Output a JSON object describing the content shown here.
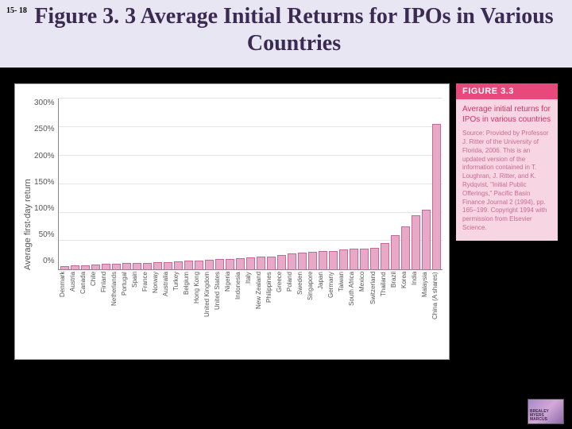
{
  "page_number": "15- 18",
  "title": "Figure 3. 3 Average Initial Returns for IPOs in Various Countries",
  "chart": {
    "type": "bar",
    "y_axis_label": "Average first-day return",
    "ylim": [
      0,
      300
    ],
    "ytick_step": 50,
    "y_ticks": [
      "300%",
      "250%",
      "200%",
      "150%",
      "100%",
      "50%",
      "0%"
    ],
    "bar_fill": "#e8a8c8",
    "bar_stroke": "#c46a9a",
    "grid_color": "#e5e5e5",
    "axis_color": "#888888",
    "background_color": "#ffffff",
    "categories": [
      "Denmark",
      "Austria",
      "Canada",
      "Chile",
      "Finland",
      "Netherlands",
      "Portugal",
      "Spain",
      "France",
      "Norway",
      "Australia",
      "Turkey",
      "Belgium",
      "Hong Kong",
      "United Kingdom",
      "United States",
      "Nigeria",
      "Indonesia",
      "Italy",
      "New Zealand",
      "Philippines",
      "Greece",
      "Poland",
      "Sweden",
      "Singapore",
      "Japan",
      "Germany",
      "Taiwan",
      "South Africa",
      "Mexico",
      "Switzerland",
      "Thailand",
      "Brazil",
      "Korea",
      "India",
      "Malaysia",
      "China (A shares)"
    ],
    "values": [
      6,
      7,
      7,
      9,
      10,
      10,
      11,
      11,
      12,
      13,
      13,
      14,
      15,
      16,
      17,
      18,
      19,
      20,
      21,
      22,
      23,
      25,
      28,
      30,
      31,
      32,
      33,
      35,
      36,
      37,
      38,
      47,
      60,
      75,
      95,
      105,
      255
    ]
  },
  "sidebar": {
    "header": "FIGURE 3.3",
    "caption_title": "Average initial returns for IPOs in various countries",
    "caption_source": "Source: Provided by Professor J. Ritter of the University of Florida, 2006. This is an updated version of the information contained in T. Loughran, J. Ritter, and K. Rydqvist, \"Initial Public Offerings,\" Pacific Basin Finance Journal 2 (1994), pp. 165–199. Copyright 1994 with permission from Elsevier Science."
  },
  "logo": {
    "line1": "BREALEY",
    "line2": "MYERS",
    "line3": "MARCUS"
  }
}
